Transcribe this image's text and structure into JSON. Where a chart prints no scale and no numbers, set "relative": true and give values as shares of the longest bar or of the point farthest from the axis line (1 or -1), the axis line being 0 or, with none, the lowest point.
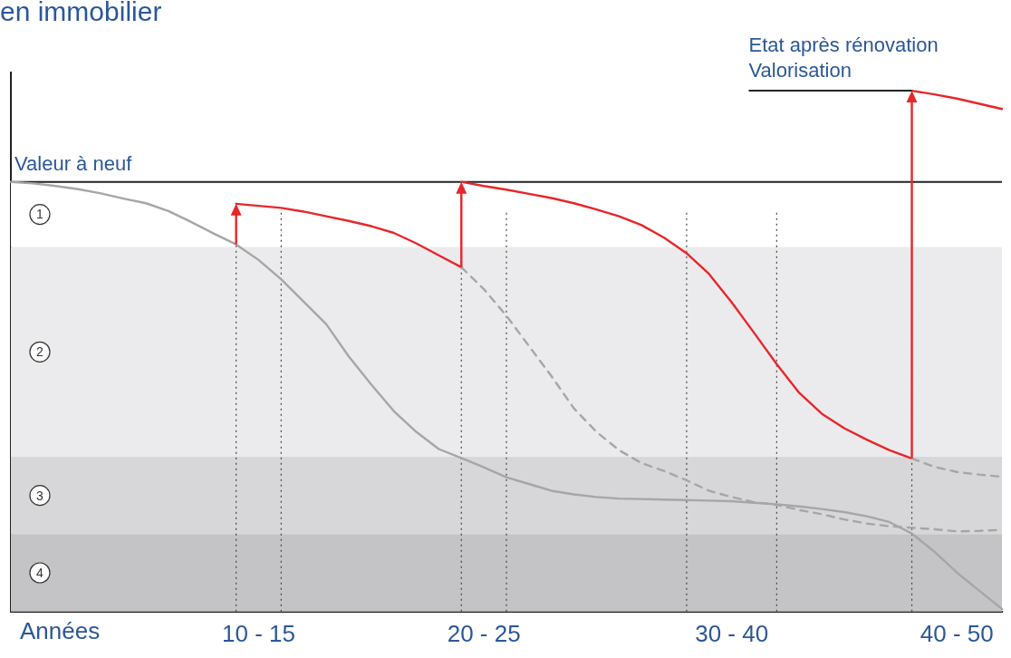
{
  "chart_data": {
    "type": "line",
    "title": "en immobilier",
    "xlabel": "Années",
    "relative": true,
    "grid": "x",
    "legend": false,
    "marker": "none",
    "categories": [
      null,
      null,
      null,
      null,
      null,
      null,
      null,
      null,
      null,
      null,
      null,
      "10 - 15",
      null,
      null,
      null,
      null,
      null,
      null,
      null,
      null,
      null,
      "20 - 25",
      null,
      null,
      null,
      null,
      null,
      null,
      null,
      null,
      null,
      null,
      "30 - 40",
      null,
      null,
      null,
      null,
      null,
      null,
      null,
      null,
      null,
      "40 - 50",
      null,
      null
    ],
    "series": [
      {
        "color": "#a6a6a6",
        "line_style": "solid",
        "values": [
          0.825,
          0.822,
          0.817,
          0.811,
          0.803,
          0.793,
          0.784,
          0.769,
          0.748,
          0.726,
          0.705,
          0.675,
          0.638,
          0.595,
          0.552,
          0.49,
          0.436,
          0.385,
          0.345,
          0.312,
          0.295,
          0.277,
          0.258,
          0.245,
          0.232,
          0.225,
          0.22,
          0.217,
          0.216,
          0.215,
          0.214,
          0.213,
          0.212,
          0.209,
          0.206,
          0.202,
          0.197,
          0.191,
          0.183,
          0.172,
          0.15,
          0.115,
          0.075,
          0.04,
          0.005
        ]
      },
      {
        "color": "#a6a6a6",
        "line_style": "dashed",
        "values": [
          null,
          null,
          null,
          null,
          null,
          null,
          null,
          null,
          null,
          null,
          null,
          null,
          null,
          null,
          null,
          null,
          null,
          null,
          null,
          null,
          0.661,
          0.619,
          0.568,
          0.51,
          0.452,
          0.39,
          0.345,
          0.31,
          0.285,
          0.27,
          0.252,
          0.232,
          0.22,
          0.21,
          0.205,
          0.195,
          0.187,
          0.177,
          0.169,
          0.164,
          0.161,
          0.158,
          0.154,
          0.155,
          0.157
        ]
      },
      {
        "color": "#a6a6a6",
        "line_style": "dashed",
        "values": [
          null,
          null,
          null,
          null,
          null,
          null,
          null,
          null,
          null,
          null,
          null,
          null,
          null,
          null,
          null,
          null,
          null,
          null,
          null,
          null,
          null,
          null,
          null,
          null,
          null,
          null,
          null,
          null,
          null,
          null,
          null,
          null,
          null,
          null,
          null,
          null,
          null,
          null,
          null,
          null,
          0.294,
          0.278,
          0.268,
          0.263,
          0.259
        ]
      },
      {
        "color": "#e8262a",
        "line_style": "solid",
        "values": [
          null,
          null,
          null,
          null,
          null,
          null,
          null,
          null,
          null,
          null,
          0.783,
          0.779,
          0.775,
          0.768,
          0.759,
          0.75,
          0.74,
          0.727,
          0.707,
          0.684,
          0.661,
          null,
          null,
          null,
          null,
          null,
          null,
          null,
          null,
          null,
          null,
          null,
          null,
          null,
          null,
          null,
          null,
          null,
          null,
          null,
          null,
          null,
          null,
          null,
          null
        ]
      },
      {
        "color": "#e8262a",
        "line_style": "solid",
        "values": [
          null,
          null,
          null,
          null,
          null,
          null,
          null,
          null,
          null,
          null,
          null,
          null,
          null,
          null,
          null,
          null,
          null,
          null,
          null,
          null,
          0.825,
          0.817,
          0.81,
          0.802,
          0.794,
          0.784,
          0.772,
          0.759,
          0.742,
          0.718,
          0.688,
          0.648,
          0.594,
          0.535,
          0.475,
          0.42,
          0.38,
          0.352,
          0.33,
          0.31,
          0.294,
          null,
          null,
          null,
          null
        ]
      },
      {
        "color": "#e8262a",
        "line_style": "solid",
        "values": [
          null,
          null,
          null,
          null,
          null,
          null,
          null,
          null,
          null,
          null,
          null,
          null,
          null,
          null,
          null,
          null,
          null,
          null,
          null,
          null,
          null,
          null,
          null,
          null,
          null,
          null,
          null,
          null,
          null,
          null,
          null,
          null,
          null,
          null,
          null,
          null,
          null,
          null,
          null,
          null,
          1.0,
          0.993,
          0.985,
          0.975,
          0.965
        ]
      }
    ],
    "bands": [
      {
        "axis": "y",
        "from": 0.7,
        "to": 0.825,
        "label": "1",
        "color": "#ffffff"
      },
      {
        "axis": "y",
        "from": 0.297,
        "to": 0.7,
        "label": "2",
        "color": "#ebebed"
      },
      {
        "axis": "y",
        "from": 0.149,
        "to": 0.297,
        "label": "3",
        "color": "#d7d7d9"
      },
      {
        "axis": "y",
        "from": 0,
        "to": 0.149,
        "label": "4",
        "color": "#c4c4c6"
      }
    ],
    "ref_lines": [
      {
        "axis": "y",
        "value": 0.825,
        "label": "Valeur à neuf",
        "color": "#222222",
        "line_style": "solid"
      }
    ],
    "annotations": [
      "Etat après rénovation\nValorisation"
    ]
  }
}
